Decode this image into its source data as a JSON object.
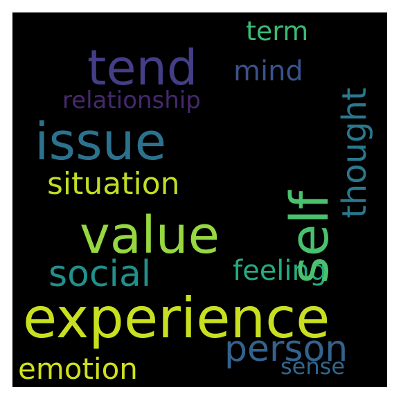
{
  "words": {
    "experience": {
      "text": "experience",
      "color": "#c8e020"
    },
    "value": {
      "text": "value",
      "color": "#95d840"
    },
    "issue": {
      "text": "issue",
      "color": "#2c728e"
    },
    "tend": {
      "text": "tend",
      "color": "#433e85"
    },
    "self": {
      "text": "self",
      "color": "#4ac16d"
    },
    "person": {
      "text": "person",
      "color": "#33638d"
    },
    "social": {
      "text": "social",
      "color": "#21908d"
    },
    "thought": {
      "text": "thought",
      "color": "#2a788e"
    },
    "situation": {
      "text": "situation",
      "color": "#c2df23"
    },
    "emotion": {
      "text": "emotion",
      "color": "#d0e11c"
    },
    "feeling": {
      "text": "feeling",
      "color": "#25ab82"
    },
    "mind": {
      "text": "mind",
      "color": "#3b528b"
    },
    "term": {
      "text": "term",
      "color": "#3bbb75"
    },
    "relationship": {
      "text": "relationship",
      "color": "#46296e"
    },
    "sense": {
      "text": "sense",
      "color": "#31678e"
    }
  },
  "background_color": "#000000"
}
